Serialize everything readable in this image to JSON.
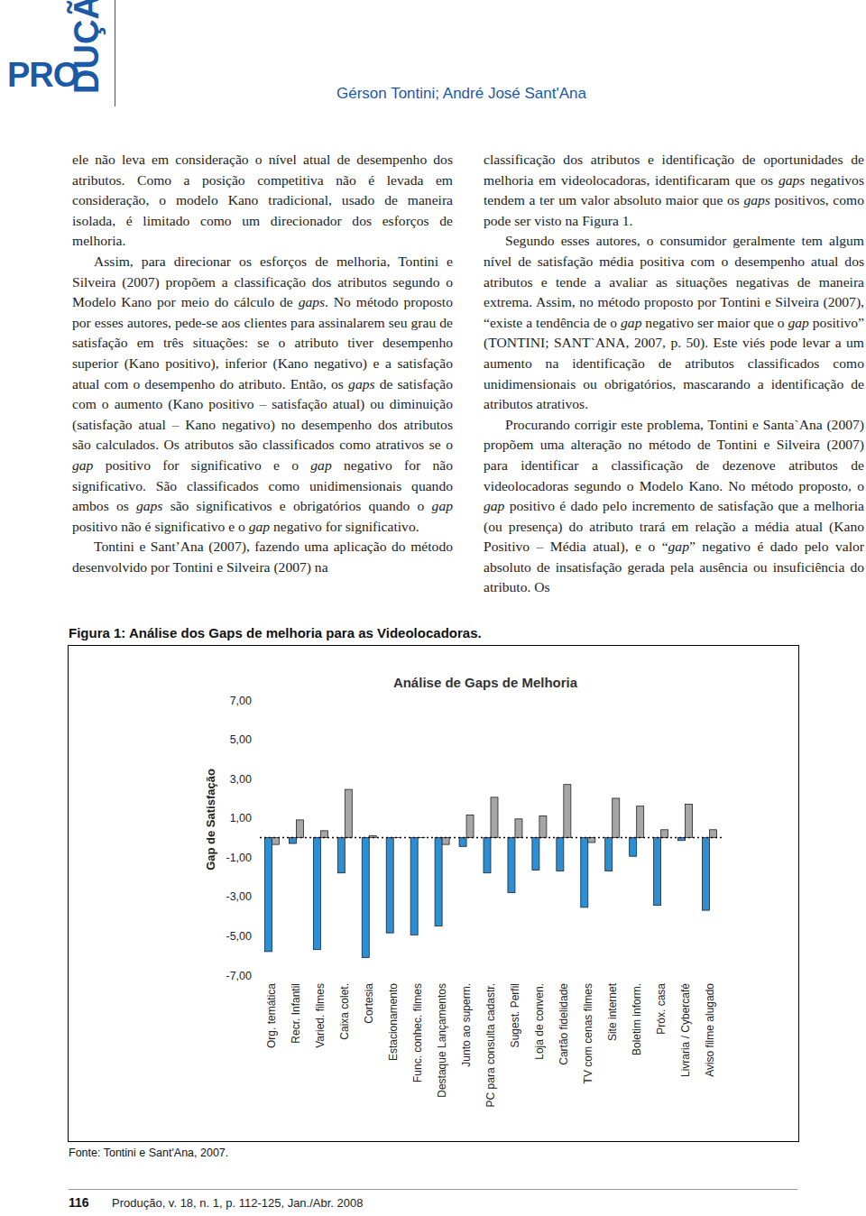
{
  "header": {
    "logo_a": "PRO",
    "logo_b": "DUÇÃO",
    "authors": "Gérson Tontini; André José Sant'Ana"
  },
  "columns": [
    [
      [
        "ele não leva em consideração o nível atual de desempenho dos atributos. Como a posição competitiva não é levada em consideração, o modelo Kano tradicional, usado de maneira isolada, é limitado como um direcionador dos esforços de melhoria."
      ],
      [
        "Assim, para direcionar os esforços de melhoria, Tontini e Silveira (2007) propõem a classificação dos atributos segundo o Modelo Kano por meio do cálculo de ",
        {
          "em": "gaps"
        },
        ". No método proposto por esses autores, pede-se aos clientes para assinalarem seu grau de satisfação em três situações: se o atributo tiver desempenho superior (Kano positivo), inferior (Kano negativo) e a satisfação atual com o desempenho do atributo. Então, os ",
        {
          "em": "gaps"
        },
        " de satisfação com o aumento (Kano positivo – satisfação atual) ou diminuição (satisfação atual – Kano negativo) no desempenho dos atributos são calculados. Os atributos são classificados como atrativos se o ",
        {
          "em": "gap"
        },
        " positivo for significativo e o ",
        {
          "em": "gap"
        },
        " negativo for não significativo. São classificados como unidimensionais quando ambos os ",
        {
          "em": "gaps"
        },
        " são significativos e obrigatórios quando o ",
        {
          "em": "gap"
        },
        " positivo não é significativo e o ",
        {
          "em": "gap"
        },
        " negativo for significativo."
      ],
      [
        "Tontini e Sant’Ana (2007), fazendo uma aplicação do método desenvolvido por Tontini e Silveira (2007) na"
      ]
    ],
    [
      [
        "classificação dos atributos e identificação de oportunidades de melhoria em videolocadoras, identificaram que os ",
        {
          "em": "gaps"
        },
        " negativos tendem a ter um valor absoluto maior que os ",
        {
          "em": "gaps"
        },
        " positivos, como pode ser visto na Figura 1."
      ],
      [
        "Segundo esses autores, o consumidor geralmente tem algum nível de satisfação média positiva com o desempenho atual dos atributos e tende a avaliar as situações negativas de maneira extrema. Assim, no método proposto por Tontini e Silveira (2007), “existe a tendência de o ",
        {
          "em": "gap"
        },
        " negativo ser maior que o ",
        {
          "em": "gap"
        },
        " positivo” (TONTINI; SANT`ANA, 2007, p. 50). Este viés pode levar a um aumento na identificação de atributos classificados como unidimensionais ou obrigatórios, mascarando a identificação de atributos atrativos."
      ],
      [
        "Procurando corrigir este problema, Tontini e Santa`Ana (2007) propõem uma alteração no método de Tontini e Silveira (2007) para identificar a classificação de dezenove atributos de videolocadoras segundo o Modelo Kano. No método proposto, o ",
        {
          "em": "gap"
        },
        " positivo é dado pelo incremento de satisfação que a melhoria (ou presença) do atributo trará em relação a média atual (Kano Positivo – Média atual), e o “",
        {
          "em": "gap"
        },
        "” negativo é dado pelo valor absoluto de insatisfação gerada pela ausência ou insuficiência do atributo. Os"
      ]
    ]
  ],
  "figure": {
    "caption": "Figura 1: Análise dos Gaps de melhoria para as Videolocadoras.",
    "source": "Fonte: Tontini e Sant'Ana, 2007."
  },
  "chart_data": {
    "type": "bar",
    "title": "Análise de Gaps de Melhoria",
    "y_label": "Gap de Satisfação",
    "categories": [
      "Org. temática",
      "Recr. Infantil",
      "Varied. filmes",
      "Caixa colet.",
      "Cortesia",
      "Estacionamento",
      "Func. conhec. filmes",
      "Destaque Lançamentos",
      "Junto ao superm.",
      "PC para consulta cadastr.",
      "Sugest. Perfil",
      "Loja de conven.",
      "Cartão fidelidade",
      "TV com cenas filmes",
      "Site internet",
      "Boletim inform.",
      "Próx. casa",
      "Livraria / Cybercafé",
      "Aviso filme alugado"
    ],
    "series": [
      {
        "color": "#2b8fd6",
        "values": [
          -5.8,
          -0.3,
          -5.7,
          -1.8,
          -6.1,
          -4.85,
          -4.95,
          -4.5,
          -0.45,
          -1.8,
          -2.8,
          -1.65,
          -1.7,
          -3.55,
          -1.7,
          -0.95,
          -3.45,
          -0.15,
          -3.7
        ]
      },
      {
        "color": "#a6a6a6",
        "values": [
          -0.35,
          0.9,
          0.35,
          2.45,
          0.1,
          0,
          0,
          -0.35,
          1.15,
          2.05,
          0.95,
          1.1,
          2.7,
          -0.25,
          2.0,
          1.6,
          0.4,
          1.7,
          0.4
        ]
      }
    ],
    "ylim": [
      -7,
      7
    ],
    "yticks": [
      {
        "value": 7,
        "label": "7,00"
      },
      {
        "value": 5,
        "label": "5,00"
      },
      {
        "value": 3,
        "label": "3,00"
      },
      {
        "value": 1,
        "label": "1,00"
      },
      {
        "value": -1,
        "label": "-1,00"
      },
      {
        "value": -3,
        "label": "-3,00"
      },
      {
        "value": -5,
        "label": "-5,00"
      },
      {
        "value": -7,
        "label": "-7,00"
      }
    ],
    "grid": false
  },
  "footer": {
    "page": "116",
    "journal": "Produção, v. 18, n. 1, p. 112-125, Jan./Abr. 2008"
  }
}
